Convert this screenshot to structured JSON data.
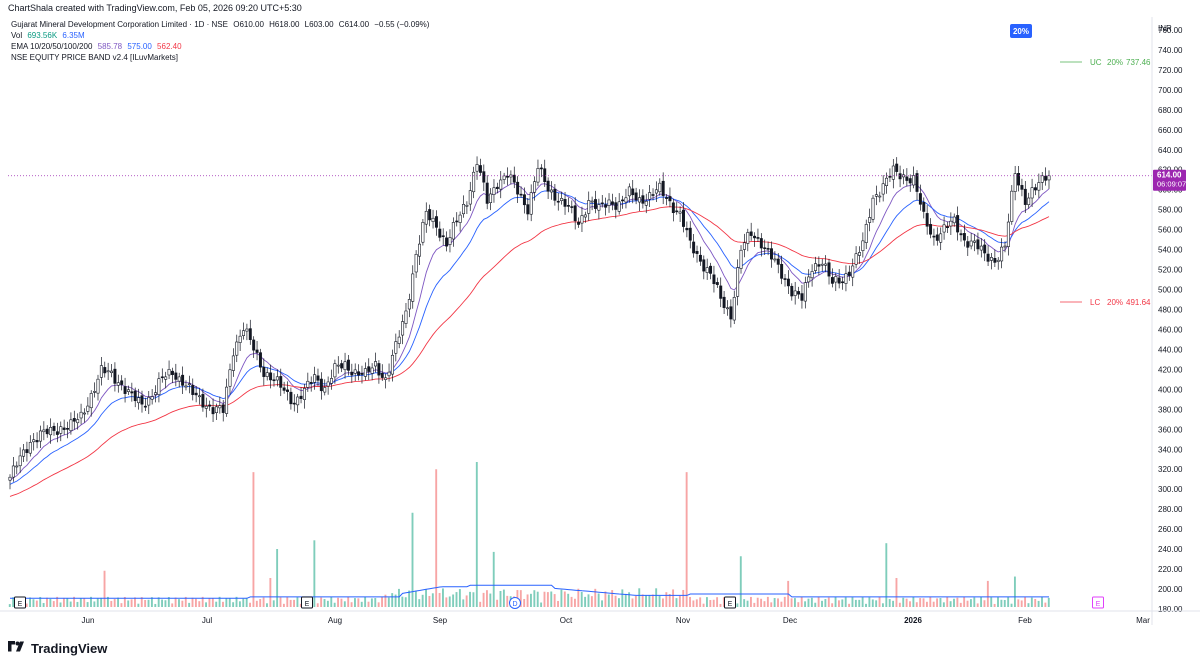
{
  "header": {
    "credit": "ChartShala created with TradingView.com, Feb 05, 2026 09:20 UTC+5:30"
  },
  "legend": {
    "symbol_line": "Gujarat Mineral Development Corporation Limited · 1D · NSE",
    "ohlc": {
      "o": "O610.00",
      "h": "H618.00",
      "l": "L603.00",
      "c": "C614.00",
      "chg": "−0.55 (−0.09%)"
    },
    "vol_label": "Vol",
    "vol_value": "693.56K",
    "vol_ma": "6.35M",
    "ema_label": "EMA 10/20/50/100/200",
    "ema_values": [
      "585.78",
      "575.00",
      "562.40"
    ],
    "band_label": "NSE EQUITY PRICE BAND v2.4 [ILuvMarkets]"
  },
  "price_band": {
    "badge": "20%",
    "uc_label": "UC",
    "uc_pct": "20%",
    "uc_value": "737.46",
    "lc_label": "LC",
    "lc_pct": "20%",
    "lc_value": "491.64"
  },
  "last_price": {
    "value": "614.00",
    "countdown": "06:09:07"
  },
  "currency": "INR",
  "colors": {
    "up": "#089981",
    "down": "#f23645",
    "ema_purple": "#7e57c2",
    "ema_blue": "#2962ff",
    "ema_red": "#f23645",
    "vol_ma": "#2962ff",
    "last_price": "#9c27b0",
    "uc": "#4caf50",
    "lc": "#f23645",
    "badge": "#2962ff"
  },
  "events": [
    {
      "label": "E",
      "date": "May 2025"
    },
    {
      "label": "E",
      "date": "Jul 2025"
    },
    {
      "label": "D",
      "date": "Sep 2025"
    },
    {
      "label": "E",
      "date": "Nov 2025"
    },
    {
      "label": "E",
      "date": "Feb 2026"
    }
  ],
  "footer": {
    "brand": "TradingView"
  },
  "chart_data": {
    "type": "candlestick",
    "ylim": [
      180,
      770
    ],
    "y_ticks": [
      "760.00",
      "740.00",
      "720.00",
      "700.00",
      "680.00",
      "660.00",
      "640.00",
      "620.00",
      "600.00",
      "580.00",
      "560.00",
      "540.00",
      "520.00",
      "500.00",
      "480.00",
      "460.00",
      "440.00",
      "420.00",
      "400.00",
      "380.00",
      "360.00",
      "340.00",
      "320.00",
      "300.00",
      "280.00",
      "260.00",
      "240.00",
      "220.00",
      "200.00",
      "180.00"
    ],
    "x_ticks": [
      "Jun",
      "Jul",
      "Aug",
      "Sep",
      "Oct",
      "Nov",
      "Dec",
      "2026",
      "Feb",
      "Mar"
    ],
    "waypoints": [
      [
        0,
        312
      ],
      [
        3,
        330
      ],
      [
        6,
        348
      ],
      [
        9,
        355
      ],
      [
        12,
        357
      ],
      [
        15,
        362
      ],
      [
        18,
        364
      ],
      [
        21,
        372
      ],
      [
        24,
        395
      ],
      [
        27,
        418
      ],
      [
        30,
        415
      ],
      [
        33,
        405
      ],
      [
        36,
        392
      ],
      [
        39,
        385
      ],
      [
        42,
        395
      ],
      [
        45,
        410
      ],
      [
        48,
        418
      ],
      [
        51,
        408
      ],
      [
        54,
        395
      ],
      [
        57,
        388
      ],
      [
        60,
        380
      ],
      [
        63,
        378
      ],
      [
        66,
        440
      ],
      [
        69,
        462
      ],
      [
        72,
        440
      ],
      [
        75,
        418
      ],
      [
        78,
        410
      ],
      [
        81,
        398
      ],
      [
        84,
        388
      ],
      [
        87,
        398
      ],
      [
        90,
        412
      ],
      [
        93,
        402
      ],
      [
        96,
        420
      ],
      [
        99,
        424
      ],
      [
        102,
        418
      ],
      [
        105,
        414
      ],
      [
        108,
        425
      ],
      [
        111,
        410
      ],
      [
        114,
        442
      ],
      [
        117,
        478
      ],
      [
        120,
        535
      ],
      [
        123,
        575
      ],
      [
        126,
        565
      ],
      [
        129,
        545
      ],
      [
        132,
        568
      ],
      [
        135,
        590
      ],
      [
        138,
        628
      ],
      [
        141,
        588
      ],
      [
        144,
        608
      ],
      [
        147,
        615
      ],
      [
        150,
        598
      ],
      [
        153,
        582
      ],
      [
        156,
        622
      ],
      [
        159,
        600
      ],
      [
        162,
        592
      ],
      [
        165,
        582
      ],
      [
        168,
        565
      ],
      [
        171,
        590
      ],
      [
        174,
        580
      ],
      [
        177,
        588
      ],
      [
        180,
        586
      ],
      [
        183,
        596
      ],
      [
        186,
        590
      ],
      [
        189,
        594
      ],
      [
        192,
        600
      ],
      [
        195,
        588
      ],
      [
        198,
        575
      ],
      [
        201,
        545
      ],
      [
        204,
        530
      ],
      [
        207,
        515
      ],
      [
        210,
        490
      ],
      [
        213,
        475
      ],
      [
        216,
        540
      ],
      [
        219,
        556
      ],
      [
        222,
        548
      ],
      [
        225,
        532
      ],
      [
        228,
        515
      ],
      [
        231,
        500
      ],
      [
        234,
        490
      ],
      [
        237,
        522
      ],
      [
        240,
        530
      ],
      [
        243,
        505
      ],
      [
        246,
        510
      ],
      [
        249,
        525
      ],
      [
        252,
        545
      ],
      [
        255,
        592
      ],
      [
        258,
        604
      ],
      [
        261,
        618
      ],
      [
        264,
        614
      ],
      [
        267,
        610
      ],
      [
        270,
        572
      ],
      [
        273,
        552
      ],
      [
        276,
        560
      ],
      [
        279,
        568
      ],
      [
        282,
        550
      ],
      [
        285,
        545
      ],
      [
        288,
        535
      ],
      [
        291,
        530
      ],
      [
        294,
        542
      ],
      [
        297,
        618
      ],
      [
        300,
        590
      ],
      [
        303,
        600
      ],
      [
        306,
        614
      ],
      [
        307,
        614
      ]
    ],
    "ema_series": [
      {
        "name": "EMA 10",
        "color": "#7e57c2"
      },
      {
        "name": "EMA 20",
        "color": "#2962ff"
      },
      {
        "name": "EMA 50",
        "color": "#f23645"
      }
    ],
    "volume_spikes": [
      {
        "bar": 28,
        "rel": 0.25
      },
      {
        "bar": 72,
        "rel": 0.93
      },
      {
        "bar": 77,
        "rel": 0.2
      },
      {
        "bar": 79,
        "rel": 0.4
      },
      {
        "bar": 90,
        "rel": 0.46
      },
      {
        "bar": 119,
        "rel": 0.65
      },
      {
        "bar": 126,
        "rel": 0.95
      },
      {
        "bar": 138,
        "rel": 1.0
      },
      {
        "bar": 143,
        "rel": 0.38
      },
      {
        "bar": 200,
        "rel": 0.93
      },
      {
        "bar": 216,
        "rel": 0.35
      },
      {
        "bar": 230,
        "rel": 0.18
      },
      {
        "bar": 259,
        "rel": 0.44
      },
      {
        "bar": 262,
        "rel": 0.2
      },
      {
        "bar": 289,
        "rel": 0.18
      },
      {
        "bar": 297,
        "rel": 0.21
      }
    ]
  }
}
